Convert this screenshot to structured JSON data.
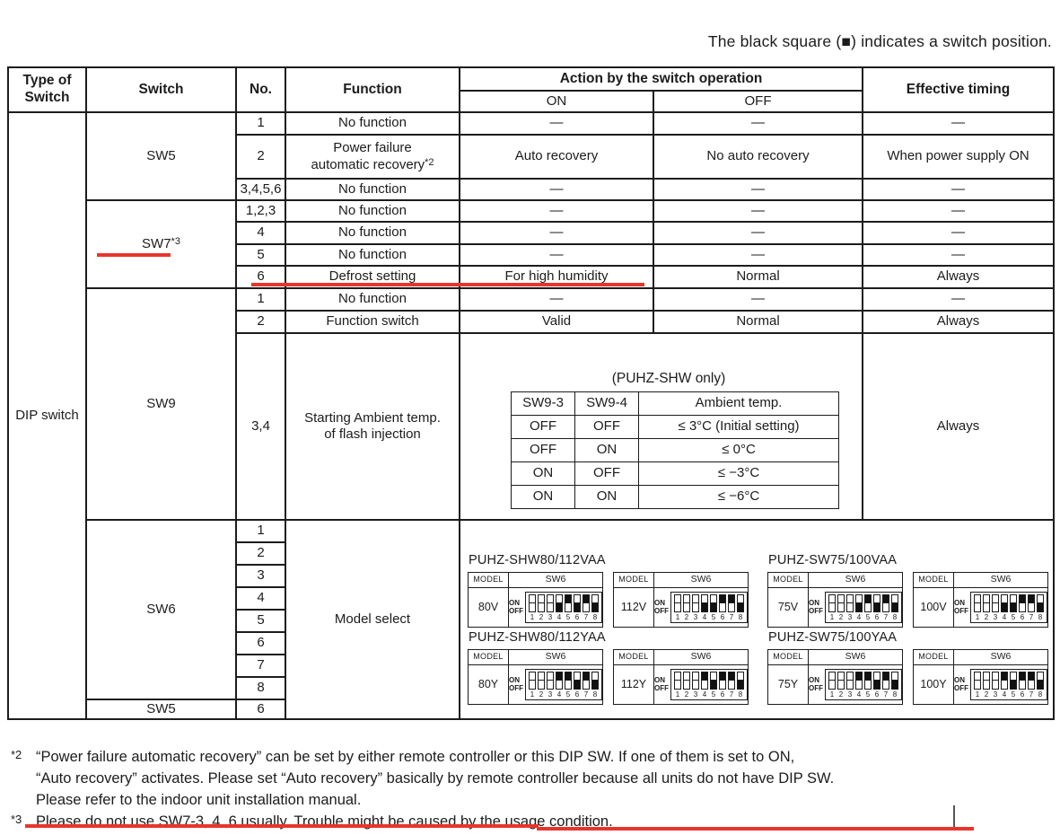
{
  "note": "The black square (■) indicates a switch position.",
  "header": {
    "type_of_switch": "Type of Switch",
    "switch": "Switch",
    "no": "No.",
    "function": "Function",
    "action": "Action by the switch operation",
    "on": "ON",
    "off": "OFF",
    "effective_timing": "Effective timing"
  },
  "body": {
    "type_of_switch": "DIP switch",
    "sw5_top": {
      "label": "SW5",
      "rows": [
        {
          "no": "1",
          "function": "No function",
          "on": "—",
          "off": "—",
          "timing": "—"
        },
        {
          "no": "2",
          "function_line1": "Power failure",
          "function_line2": "automatic recovery",
          "function_sup": "*2",
          "on": "Auto recovery",
          "off": "No auto recovery",
          "timing": "When power supply ON"
        },
        {
          "no": "3,4,5,6",
          "function": "No function",
          "on": "—",
          "off": "—",
          "timing": "—"
        }
      ]
    },
    "sw7": {
      "label": "SW7",
      "label_sup": "*3",
      "rows": [
        {
          "no": "1,2,3",
          "function": "No function",
          "on": "—",
          "off": "—",
          "timing": "—"
        },
        {
          "no": "4",
          "function": "No function",
          "on": "—",
          "off": "—",
          "timing": "—"
        },
        {
          "no": "5",
          "function": "No function",
          "on": "—",
          "off": "—",
          "timing": "—"
        },
        {
          "no": "6",
          "function": "Defrost setting",
          "on": "For high humidity",
          "off": "Normal",
          "timing": "Always"
        }
      ]
    },
    "sw9": {
      "label": "SW9",
      "rows": [
        {
          "no": "1",
          "function": "No function",
          "on": "—",
          "off": "—",
          "timing": "—"
        },
        {
          "no": "2",
          "function": "Function switch",
          "on": "Valid",
          "off": "Normal",
          "timing": "Always"
        }
      ],
      "row34": {
        "no": "3,4",
        "function_line1": "Starting Ambient temp.",
        "function_line2": "of flash injection",
        "timing": "Always",
        "subtable": {
          "caption": "(PUHZ-SHW only)",
          "headers": [
            "SW9-3",
            "SW9-4",
            "Ambient temp."
          ],
          "rows": [
            [
              "OFF",
              "OFF",
              "≤ 3°C (Initial setting)"
            ],
            [
              "OFF",
              "ON",
              "≤ 0°C"
            ],
            [
              "ON",
              "OFF",
              "≤ −3°C"
            ],
            [
              "ON",
              "ON",
              "≤ −6°C"
            ]
          ]
        }
      }
    },
    "sw6": {
      "label": "SW6",
      "numbers": [
        "1",
        "2",
        "3",
        "4",
        "5",
        "6",
        "7",
        "8"
      ],
      "function": "Model select"
    },
    "sw5_bottom": {
      "label": "SW5",
      "no": "6"
    }
  },
  "model_select": {
    "labels": {
      "model": "MODEL",
      "sw": "SW6",
      "on": "ON",
      "off": "OFF",
      "numbers": [
        "1",
        "2",
        "3",
        "4",
        "5",
        "6",
        "7",
        "8"
      ]
    },
    "groups": [
      {
        "title": "PUHZ-SHW80/112VAA",
        "units": [
          {
            "model": "80V",
            "positions": [
              "none",
              "none",
              "none",
              "off",
              "on",
              "off",
              "on",
              "off"
            ]
          },
          {
            "model": "112V",
            "positions": [
              "none",
              "none",
              "none",
              "off",
              "off",
              "on",
              "on",
              "off"
            ]
          }
        ]
      },
      {
        "title": "PUHZ-SW75/100VAA",
        "units": [
          {
            "model": "75V",
            "positions": [
              "none",
              "none",
              "none",
              "off",
              "on",
              "off",
              "on",
              "off"
            ]
          },
          {
            "model": "100V",
            "positions": [
              "none",
              "none",
              "none",
              "off",
              "off",
              "on",
              "on",
              "off"
            ]
          }
        ]
      },
      {
        "title": "PUHZ-SHW80/112YAA",
        "units": [
          {
            "model": "80Y",
            "positions": [
              "none",
              "none",
              "none",
              "on",
              "on",
              "off",
              "on",
              "off"
            ]
          },
          {
            "model": "112Y",
            "positions": [
              "none",
              "none",
              "none",
              "on",
              "off",
              "on",
              "on",
              "off"
            ]
          }
        ]
      },
      {
        "title": "PUHZ-SW75/100YAA",
        "units": [
          {
            "model": "75Y",
            "positions": [
              "none",
              "none",
              "none",
              "on",
              "on",
              "off",
              "on",
              "off"
            ]
          },
          {
            "model": "100Y",
            "positions": [
              "none",
              "none",
              "none",
              "on",
              "off",
              "on",
              "on",
              "off"
            ]
          }
        ]
      }
    ]
  },
  "footnotes": [
    {
      "marker": "*2",
      "lines": [
        "“Power failure automatic recovery” can be set by either remote controller or this DIP SW. If one of them is set to ON,",
        "“Auto recovery” activates. Please set “Auto recovery” basically by remote controller because all units do not have DIP SW.",
        "Please refer to the indoor unit installation manual."
      ]
    },
    {
      "marker": "*3",
      "lines": [
        "Please do not use SW7-3, 4 ,6 usually. Trouble might be caused by the usage condition."
      ]
    }
  ],
  "colors": {
    "accent_red": "#e8352c",
    "switch_black": "#111111"
  }
}
